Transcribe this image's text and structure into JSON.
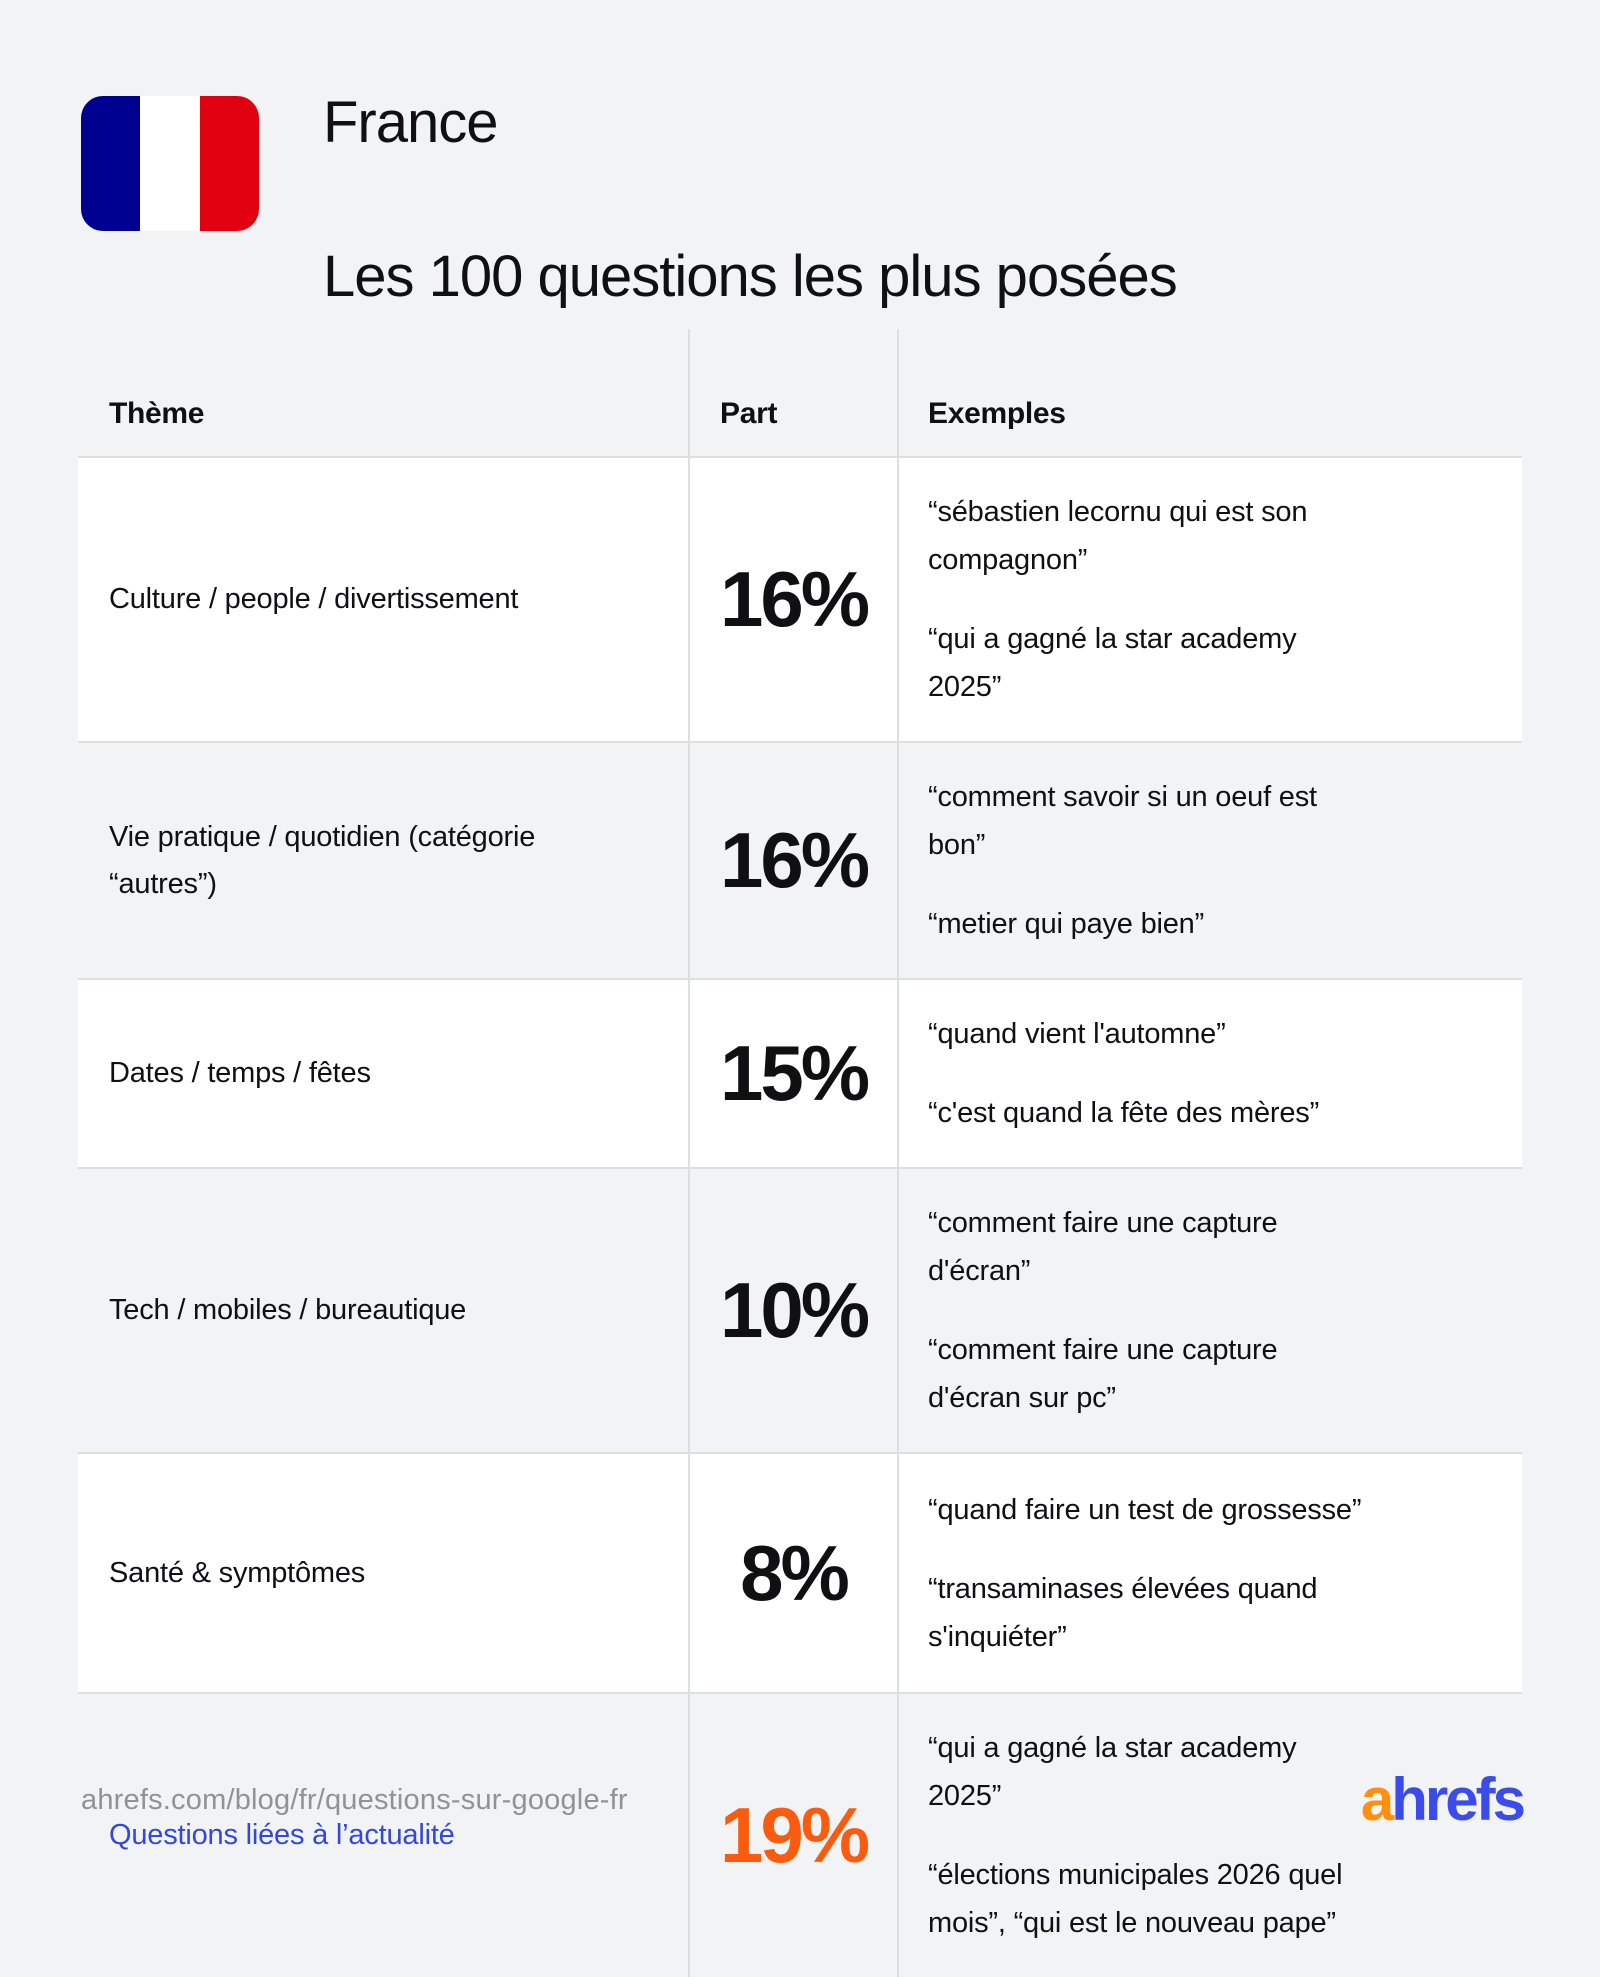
{
  "header": {
    "title_line1": "France",
    "title_line2": "Les 100 questions les plus posées",
    "flag_colors": {
      "blue": "#000091",
      "white": "#ffffff",
      "red": "#e1000f"
    }
  },
  "table": {
    "columns": {
      "theme": "Thème",
      "part": "Part",
      "examples": "Exemples"
    },
    "rows": [
      {
        "theme": "Culture / people / divertissement",
        "part": "16%",
        "examples": [
          "“sébastien lecornu qui est son compagnon”",
          "“qui a gagné la star academy 2025”"
        ]
      },
      {
        "theme": "Vie pratique / quotidien (catégorie “autres”)",
        "part": "16%",
        "examples": [
          "“comment savoir si un oeuf est bon”",
          "“metier qui paye bien”"
        ]
      },
      {
        "theme": "Dates / temps / fêtes",
        "part": "15%",
        "examples": [
          "“quand vient l'automne”",
          "“c'est quand la fête des mères”"
        ]
      },
      {
        "theme": "Tech / mobiles / bureautique",
        "part": "10%",
        "examples": [
          "“comment faire une capture d'écran”",
          "“comment faire une capture d'écran sur pc”"
        ]
      },
      {
        "theme": "Santé & symptômes",
        "part": "8%",
        "examples": [
          "“quand faire un test de grossesse”",
          "“transaminases élevées quand s'inquiéter”"
        ]
      },
      {
        "theme": "Questions liées à l’actualité",
        "part": "19%",
        "examples": [
          "“qui a gagné la star academy 2025”",
          "“élections municipales 2026 quel mois”, “qui est le nouveau pape”"
        ]
      }
    ],
    "accent_colors": {
      "news_theme_blue": "#3347d9",
      "news_part_orange": "#fa5b0f"
    }
  },
  "footer": {
    "source_url": "ahrefs.com/blog/fr/questions-sur-google-fr",
    "logo_a": "a",
    "logo_rest": "hrefs",
    "logo_colors": {
      "a_orange": "#ff8f0e",
      "rest_blue": "#3b4ceb"
    }
  },
  "chart_data": {
    "type": "table",
    "title": "France — Les 100 questions les plus posées",
    "columns": [
      "Thème",
      "Part",
      "Exemples"
    ],
    "categories": [
      "Culture / people / divertissement",
      "Vie pratique / quotidien (catégorie “autres”)",
      "Dates / temps / fêtes",
      "Tech / mobiles / bureautique",
      "Santé & symptômes",
      "Questions liées à l’actualité"
    ],
    "values_percent": [
      16,
      16,
      15,
      10,
      8,
      19
    ],
    "examples_per_category": [
      [
        "“sébastien lecornu qui est son compagnon”",
        "“qui a gagné la star academy 2025”"
      ],
      [
        "“comment savoir si un oeuf est bon”",
        "“metier qui paye bien”"
      ],
      [
        "“quand vient l'automne”",
        "“c'est quand la fête des mères”"
      ],
      [
        "“comment faire une capture d'écran”",
        "“comment faire une capture d'écran sur pc”"
      ],
      [
        "“quand faire un test de grossesse”",
        "“transaminases élevées quand s'inquiéter”"
      ],
      [
        "“qui a gagné la star academy 2025”",
        "“élections municipales 2026 quel mois”, “qui est le nouveau pape”"
      ]
    ],
    "layout": {
      "highlight_row": 5,
      "alternating_row_backgrounds": true
    }
  }
}
